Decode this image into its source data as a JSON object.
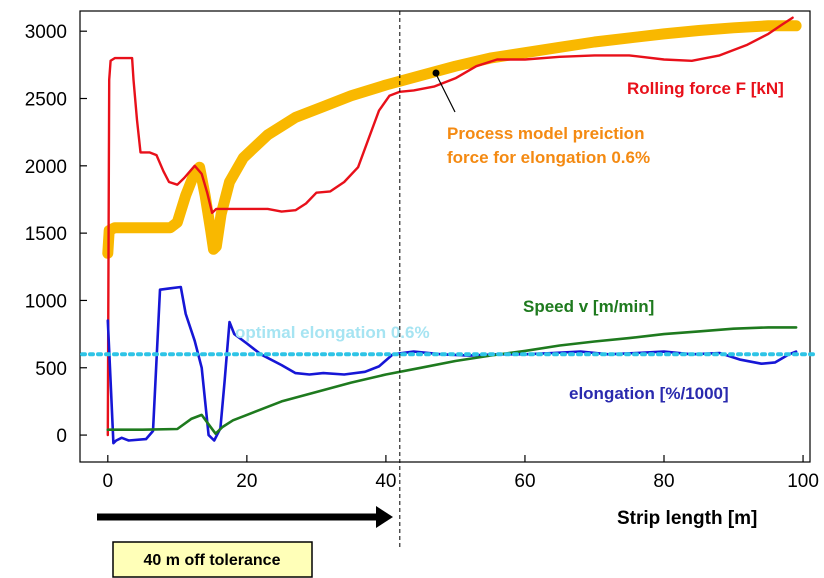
{
  "chart_data": {
    "type": "line",
    "xlabel": "Strip length [m]",
    "xlim": [
      -4,
      101
    ],
    "ylim": [
      -200,
      3150
    ],
    "xticks": [
      0,
      20,
      40,
      60,
      80,
      100
    ],
    "yticks": [
      0,
      500,
      1000,
      1500,
      2000,
      2500,
      3000
    ],
    "grid": false,
    "series": [
      {
        "key": "model",
        "color": "#F9B800",
        "points": [
          [
            0,
            1350
          ],
          [
            0.2,
            1520
          ],
          [
            1,
            1540
          ],
          [
            5,
            1540
          ],
          [
            9,
            1540
          ],
          [
            10,
            1580
          ],
          [
            11.2,
            1780
          ],
          [
            12.5,
            1950
          ],
          [
            13.2,
            1990
          ],
          [
            14,
            1780
          ],
          [
            14.8,
            1520
          ],
          [
            15.2,
            1380
          ],
          [
            15.6,
            1400
          ],
          [
            16.3,
            1640
          ],
          [
            17.5,
            1880
          ],
          [
            19.5,
            2060
          ],
          [
            23,
            2230
          ],
          [
            27,
            2360
          ],
          [
            31,
            2440
          ],
          [
            35,
            2520
          ],
          [
            40,
            2600
          ],
          [
            45,
            2670
          ],
          [
            50,
            2740
          ],
          [
            55,
            2800
          ],
          [
            60,
            2840
          ],
          [
            65,
            2880
          ],
          [
            70,
            2920
          ],
          [
            75,
            2950
          ],
          [
            80,
            2980
          ],
          [
            85,
            3005
          ],
          [
            90,
            3025
          ],
          [
            95,
            3040
          ],
          [
            99,
            3040
          ]
        ]
      },
      {
        "key": "force",
        "color": "#E8101A",
        "points": [
          [
            0,
            0
          ],
          [
            0.2,
            2640
          ],
          [
            0.4,
            2780
          ],
          [
            1,
            2800
          ],
          [
            3.5,
            2800
          ],
          [
            3.7,
            2640
          ],
          [
            4.2,
            2340
          ],
          [
            4.7,
            2100
          ],
          [
            6,
            2100
          ],
          [
            7,
            2080
          ],
          [
            8,
            1960
          ],
          [
            8.8,
            1880
          ],
          [
            10,
            1860
          ],
          [
            11,
            1910
          ],
          [
            12.5,
            2000
          ],
          [
            13.5,
            1940
          ],
          [
            14.3,
            1800
          ],
          [
            15,
            1650
          ],
          [
            15.6,
            1680
          ],
          [
            19,
            1680
          ],
          [
            23,
            1680
          ],
          [
            25,
            1660
          ],
          [
            27,
            1670
          ],
          [
            28.5,
            1720
          ],
          [
            30,
            1800
          ],
          [
            32,
            1810
          ],
          [
            34,
            1880
          ],
          [
            36,
            1990
          ],
          [
            37.5,
            2200
          ],
          [
            39,
            2410
          ],
          [
            40.5,
            2520
          ],
          [
            42,
            2550
          ],
          [
            44,
            2560
          ],
          [
            47,
            2590
          ],
          [
            50,
            2650
          ],
          [
            53,
            2740
          ],
          [
            56,
            2790
          ],
          [
            60,
            2790
          ],
          [
            65,
            2810
          ],
          [
            70,
            2820
          ],
          [
            75,
            2820
          ],
          [
            80,
            2790
          ],
          [
            84,
            2780
          ],
          [
            88,
            2820
          ],
          [
            92,
            2900
          ],
          [
            95,
            2980
          ],
          [
            97,
            3050
          ],
          [
            98.5,
            3100
          ]
        ]
      },
      {
        "key": "elong",
        "color": "#1616D6",
        "points": [
          [
            0,
            850
          ],
          [
            0.4,
            400
          ],
          [
            0.8,
            -60
          ],
          [
            1.2,
            -40
          ],
          [
            2,
            -20
          ],
          [
            3,
            -40
          ],
          [
            5.5,
            -30
          ],
          [
            6.5,
            30
          ],
          [
            7.5,
            1080
          ],
          [
            9,
            1090
          ],
          [
            10.5,
            1100
          ],
          [
            11.2,
            900
          ],
          [
            12.5,
            700
          ],
          [
            13.5,
            500
          ],
          [
            14.5,
            0
          ],
          [
            15.3,
            -40
          ],
          [
            16.2,
            50
          ],
          [
            16.8,
            400
          ],
          [
            17.5,
            840
          ],
          [
            18.2,
            750
          ],
          [
            20,
            680
          ],
          [
            22,
            600
          ],
          [
            25,
            520
          ],
          [
            27,
            460
          ],
          [
            29,
            450
          ],
          [
            31,
            460
          ],
          [
            34,
            450
          ],
          [
            37,
            470
          ],
          [
            39,
            510
          ],
          [
            41,
            600
          ],
          [
            44,
            620
          ],
          [
            48,
            600
          ],
          [
            52,
            590
          ],
          [
            56,
            600
          ],
          [
            60,
            600
          ],
          [
            64,
            610
          ],
          [
            68,
            620
          ],
          [
            72,
            600
          ],
          [
            76,
            610
          ],
          [
            80,
            620
          ],
          [
            84,
            600
          ],
          [
            88,
            610
          ],
          [
            91,
            560
          ],
          [
            94,
            530
          ],
          [
            96,
            540
          ],
          [
            98,
            600
          ],
          [
            99,
            620
          ]
        ]
      },
      {
        "key": "speed",
        "color": "#1E7A1E",
        "points": [
          [
            0,
            40
          ],
          [
            5,
            40
          ],
          [
            10,
            45
          ],
          [
            12,
            120
          ],
          [
            13.5,
            150
          ],
          [
            14.5,
            80
          ],
          [
            15.5,
            10
          ],
          [
            16.5,
            60
          ],
          [
            18,
            110
          ],
          [
            20,
            150
          ],
          [
            25,
            250
          ],
          [
            30,
            320
          ],
          [
            35,
            390
          ],
          [
            40,
            450
          ],
          [
            45,
            500
          ],
          [
            50,
            550
          ],
          [
            55,
            590
          ],
          [
            60,
            625
          ],
          [
            65,
            665
          ],
          [
            70,
            695
          ],
          [
            75,
            720
          ],
          [
            80,
            750
          ],
          [
            85,
            770
          ],
          [
            90,
            790
          ],
          [
            95,
            800
          ],
          [
            99,
            800
          ]
        ]
      }
    ],
    "optimal_line": {
      "y": 600,
      "color": "#2EC4E6"
    },
    "vline_x": 42,
    "annotations": {
      "force": "Rolling force F [kN]",
      "model_line1": "Process model preiction",
      "model_line2": "force for elongation 0.6%",
      "speed": "Speed  v [m/min]",
      "optimal": "optimal elongation 0.6%",
      "elong": "elongation [%/1000]"
    }
  },
  "tolerance_box": {
    "label": "40 m off tolerance"
  },
  "colors": {
    "force_label": "#E8101A",
    "model_label": "#F48A12",
    "speed_label": "#1E7A1E",
    "optimal_label": "#A6E4F2",
    "elong_label": "#2A2AAE",
    "box_fill": "#FFFFB8"
  }
}
